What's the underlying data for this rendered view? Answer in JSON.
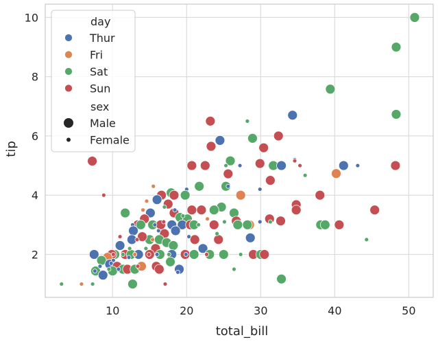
{
  "chart_data": {
    "type": "scatter",
    "xlabel": "total_bill",
    "ylabel": "tip",
    "xlim": [
      0.9,
      53.3
    ],
    "ylim": [
      0.55,
      10.45
    ],
    "xticks": [
      10,
      20,
      30,
      40,
      50
    ],
    "yticks": [
      2,
      4,
      6,
      8,
      10
    ],
    "grid": true,
    "legend": {
      "placement": "top-left",
      "hue_title": "day",
      "size_title": "sex",
      "hue_entries": [
        {
          "label": "Thur",
          "color": "#4c72b0"
        },
        {
          "label": "Fri",
          "color": "#dd8452"
        },
        {
          "label": "Sat",
          "color": "#55a868"
        },
        {
          "label": "Sun",
          "color": "#c44e52"
        }
      ],
      "size_entries": [
        {
          "label": "Male",
          "size": "large"
        },
        {
          "label": "Female",
          "size": "small"
        }
      ]
    },
    "sizes": {
      "Male": 7,
      "Female": 3
    },
    "points": [
      {
        "x": 50.8,
        "y": 10.0,
        "day": "Sat",
        "sex": "Male"
      },
      {
        "x": 48.3,
        "y": 9.0,
        "day": "Sat",
        "sex": "Male"
      },
      {
        "x": 39.4,
        "y": 7.58,
        "day": "Sat",
        "sex": "Male"
      },
      {
        "x": 48.3,
        "y": 6.73,
        "day": "Sat",
        "sex": "Male"
      },
      {
        "x": 34.3,
        "y": 6.7,
        "day": "Thur",
        "sex": "Male"
      },
      {
        "x": 28.2,
        "y": 6.5,
        "day": "Sat",
        "sex": "Female"
      },
      {
        "x": 23.2,
        "y": 6.5,
        "day": "Sun",
        "sex": "Male"
      },
      {
        "x": 32.4,
        "y": 6.0,
        "day": "Sun",
        "sex": "Male"
      },
      {
        "x": 28.9,
        "y": 5.92,
        "day": "Sat",
        "sex": "Male"
      },
      {
        "x": 24.5,
        "y": 5.85,
        "day": "Thur",
        "sex": "Male"
      },
      {
        "x": 23.3,
        "y": 5.65,
        "day": "Sun",
        "sex": "Male"
      },
      {
        "x": 30.4,
        "y": 5.6,
        "day": "Sun",
        "sex": "Male"
      },
      {
        "x": 34.6,
        "y": 5.2,
        "day": "Thur",
        "sex": "Female"
      },
      {
        "x": 7.25,
        "y": 5.15,
        "day": "Sun",
        "sex": "Male"
      },
      {
        "x": 25.9,
        "y": 5.16,
        "day": "Sat",
        "sex": "Male"
      },
      {
        "x": 34.6,
        "y": 5.16,
        "day": "Sun",
        "sex": "Female"
      },
      {
        "x": 29.9,
        "y": 5.07,
        "day": "Sun",
        "sex": "Male"
      },
      {
        "x": 20.7,
        "y": 5.0,
        "day": "Sun",
        "sex": "Male"
      },
      {
        "x": 22.5,
        "y": 5.0,
        "day": "Sun",
        "sex": "Male"
      },
      {
        "x": 31.7,
        "y": 5.0,
        "day": "Sat",
        "sex": "Male"
      },
      {
        "x": 32.8,
        "y": 5.0,
        "day": "Thur",
        "sex": "Male"
      },
      {
        "x": 41.2,
        "y": 5.0,
        "day": "Thur",
        "sex": "Male"
      },
      {
        "x": 48.2,
        "y": 5.0,
        "day": "Sun",
        "sex": "Male"
      },
      {
        "x": 25.3,
        "y": 5.0,
        "day": "Sat",
        "sex": "Female"
      },
      {
        "x": 27.2,
        "y": 5.0,
        "day": "Thur",
        "sex": "Female"
      },
      {
        "x": 43.1,
        "y": 5.0,
        "day": "Thur",
        "sex": "Female"
      },
      {
        "x": 35.3,
        "y": 5.0,
        "day": "Sun",
        "sex": "Female"
      },
      {
        "x": 40.2,
        "y": 4.73,
        "day": "Fri",
        "sex": "Male"
      },
      {
        "x": 25.6,
        "y": 4.72,
        "day": "Sun",
        "sex": "Male"
      },
      {
        "x": 36.0,
        "y": 4.67,
        "day": "Sat",
        "sex": "Female"
      },
      {
        "x": 31.3,
        "y": 4.5,
        "day": "Sun",
        "sex": "Male"
      },
      {
        "x": 21.7,
        "y": 4.3,
        "day": "Sat",
        "sex": "Male"
      },
      {
        "x": 25.3,
        "y": 4.3,
        "day": "Sat",
        "sex": "Male"
      },
      {
        "x": 15.5,
        "y": 4.3,
        "day": "Fri",
        "sex": "Female"
      },
      {
        "x": 29.9,
        "y": 4.2,
        "day": "Thur",
        "sex": "Female"
      },
      {
        "x": 20.0,
        "y": 4.2,
        "day": "Thur",
        "sex": "Female"
      },
      {
        "x": 17.9,
        "y": 4.08,
        "day": "Sat",
        "sex": "Male"
      },
      {
        "x": 16.6,
        "y": 4.0,
        "day": "Sun",
        "sex": "Male"
      },
      {
        "x": 18.3,
        "y": 4.0,
        "day": "Sun",
        "sex": "Male"
      },
      {
        "x": 27.3,
        "y": 4.0,
        "day": "Fri",
        "sex": "Male"
      },
      {
        "x": 38.0,
        "y": 4.0,
        "day": "Sun",
        "sex": "Male"
      },
      {
        "x": 19.8,
        "y": 4.0,
        "day": "Sat",
        "sex": "Male"
      },
      {
        "x": 8.8,
        "y": 4.0,
        "day": "Sun",
        "sex": "Female"
      },
      {
        "x": 16.0,
        "y": 3.85,
        "day": "Thur",
        "sex": "Male"
      },
      {
        "x": 17.5,
        "y": 3.7,
        "day": "Sun",
        "sex": "Male"
      },
      {
        "x": 24.7,
        "y": 3.6,
        "day": "Sat",
        "sex": "Male"
      },
      {
        "x": 34.8,
        "y": 3.68,
        "day": "Sun",
        "sex": "Male"
      },
      {
        "x": 45.4,
        "y": 3.5,
        "day": "Sun",
        "sex": "Male"
      },
      {
        "x": 20.7,
        "y": 3.5,
        "day": "Sun",
        "sex": "Male"
      },
      {
        "x": 22.0,
        "y": 3.5,
        "day": "Sun",
        "sex": "Male"
      },
      {
        "x": 23.7,
        "y": 3.5,
        "day": "Sat",
        "sex": "Male"
      },
      {
        "x": 34.8,
        "y": 3.5,
        "day": "Sun",
        "sex": "Male"
      },
      {
        "x": 26.4,
        "y": 3.4,
        "day": "Sat",
        "sex": "Male"
      },
      {
        "x": 11.7,
        "y": 3.4,
        "day": "Sat",
        "sex": "Male"
      },
      {
        "x": 15.1,
        "y": 3.4,
        "day": "Thur",
        "sex": "Male"
      },
      {
        "x": 18.3,
        "y": 3.4,
        "day": "Sun",
        "sex": "Male"
      },
      {
        "x": 14.3,
        "y": 3.2,
        "day": "Sun",
        "sex": "Male"
      },
      {
        "x": 19.1,
        "y": 3.25,
        "day": "Sat",
        "sex": "Male"
      },
      {
        "x": 20.1,
        "y": 3.2,
        "day": "Sat",
        "sex": "Male"
      },
      {
        "x": 31.2,
        "y": 3.2,
        "day": "Sun",
        "sex": "Male"
      },
      {
        "x": 32.7,
        "y": 3.13,
        "day": "Sun",
        "sex": "Male"
      },
      {
        "x": 26.7,
        "y": 3.13,
        "day": "Sun",
        "sex": "Male"
      },
      {
        "x": 13.4,
        "y": 3.0,
        "day": "Sun",
        "sex": "Male"
      },
      {
        "x": 13.8,
        "y": 3.0,
        "day": "Sat",
        "sex": "Male"
      },
      {
        "x": 15.4,
        "y": 3.0,
        "day": "Sat",
        "sex": "Male"
      },
      {
        "x": 16.5,
        "y": 3.0,
        "day": "Sun",
        "sex": "Male"
      },
      {
        "x": 18.0,
        "y": 3.0,
        "day": "Thur",
        "sex": "Male"
      },
      {
        "x": 19.4,
        "y": 3.0,
        "day": "Thur",
        "sex": "Male"
      },
      {
        "x": 20.5,
        "y": 3.0,
        "day": "Sun",
        "sex": "Male"
      },
      {
        "x": 21.0,
        "y": 3.0,
        "day": "Sat",
        "sex": "Male"
      },
      {
        "x": 23.7,
        "y": 3.0,
        "day": "Sun",
        "sex": "Male"
      },
      {
        "x": 26.9,
        "y": 3.0,
        "day": "Sat",
        "sex": "Male"
      },
      {
        "x": 28.5,
        "y": 3.0,
        "day": "Fri",
        "sex": "Male"
      },
      {
        "x": 28.2,
        "y": 3.0,
        "day": "Sat",
        "sex": "Male"
      },
      {
        "x": 38.1,
        "y": 3.0,
        "day": "Sat",
        "sex": "Male"
      },
      {
        "x": 38.7,
        "y": 3.0,
        "day": "Sat",
        "sex": "Male"
      },
      {
        "x": 40.6,
        "y": 3.0,
        "day": "Sun",
        "sex": "Male"
      },
      {
        "x": 12.7,
        "y": 3.0,
        "day": "Thur",
        "sex": "Female"
      },
      {
        "x": 12.8,
        "y": 2.8,
        "day": "Thur",
        "sex": "Male"
      },
      {
        "x": 15.0,
        "y": 2.5,
        "day": "Sat",
        "sex": "Male"
      },
      {
        "x": 18.5,
        "y": 2.8,
        "day": "Thur",
        "sex": "Male"
      },
      {
        "x": 17.0,
        "y": 2.7,
        "day": "Sun",
        "sex": "Male"
      },
      {
        "x": 12.6,
        "y": 2.5,
        "day": "Thur",
        "sex": "Male"
      },
      {
        "x": 14.0,
        "y": 2.6,
        "day": "Sun",
        "sex": "Male"
      },
      {
        "x": 16.3,
        "y": 2.5,
        "day": "Sat",
        "sex": "Male"
      },
      {
        "x": 21.1,
        "y": 2.5,
        "day": "Sun",
        "sex": "Male"
      },
      {
        "x": 24.3,
        "y": 2.5,
        "day": "Sun",
        "sex": "Male"
      },
      {
        "x": 28.6,
        "y": 2.56,
        "day": "Thur",
        "sex": "Male"
      },
      {
        "x": 17.3,
        "y": 2.4,
        "day": "Sat",
        "sex": "Male"
      },
      {
        "x": 18.2,
        "y": 2.3,
        "day": "Sat",
        "sex": "Male"
      },
      {
        "x": 15.8,
        "y": 2.2,
        "day": "Sun",
        "sex": "Male"
      },
      {
        "x": 22.2,
        "y": 2.2,
        "day": "Thur",
        "sex": "Male"
      },
      {
        "x": 11.0,
        "y": 2.3,
        "day": "Thur",
        "sex": "Male"
      },
      {
        "x": 11.7,
        "y": 2.0,
        "day": "Sun",
        "sex": "Male"
      },
      {
        "x": 10.3,
        "y": 2.0,
        "day": "Sat",
        "sex": "Male"
      },
      {
        "x": 9.9,
        "y": 2.0,
        "day": "Sun",
        "sex": "Male"
      },
      {
        "x": 9.3,
        "y": 1.9,
        "day": "Fri",
        "sex": "Male"
      },
      {
        "x": 12.5,
        "y": 2.0,
        "day": "Sat",
        "sex": "Male"
      },
      {
        "x": 13.5,
        "y": 2.0,
        "day": "Thur",
        "sex": "Male"
      },
      {
        "x": 15.0,
        "y": 2.0,
        "day": "Sun",
        "sex": "Male"
      },
      {
        "x": 16.4,
        "y": 2.0,
        "day": "Sat",
        "sex": "Male"
      },
      {
        "x": 18.0,
        "y": 2.0,
        "day": "Thur",
        "sex": "Male"
      },
      {
        "x": 19.8,
        "y": 2.0,
        "day": "Sun",
        "sex": "Male"
      },
      {
        "x": 21.0,
        "y": 2.0,
        "day": "Sat",
        "sex": "Male"
      },
      {
        "x": 23.1,
        "y": 2.0,
        "day": "Sat",
        "sex": "Male"
      },
      {
        "x": 25.0,
        "y": 2.0,
        "day": "Sat",
        "sex": "Male"
      },
      {
        "x": 29.0,
        "y": 2.0,
        "day": "Sun",
        "sex": "Male"
      },
      {
        "x": 30.0,
        "y": 2.0,
        "day": "Sat",
        "sex": "Male"
      },
      {
        "x": 30.5,
        "y": 2.0,
        "day": "Sun",
        "sex": "Male"
      },
      {
        "x": 7.5,
        "y": 2.0,
        "day": "Thur",
        "sex": "Male"
      },
      {
        "x": 8.5,
        "y": 1.8,
        "day": "Sat",
        "sex": "Male"
      },
      {
        "x": 9.6,
        "y": 1.67,
        "day": "Thur",
        "sex": "Male"
      },
      {
        "x": 10.6,
        "y": 1.6,
        "day": "Sun",
        "sex": "Male"
      },
      {
        "x": 11.4,
        "y": 1.5,
        "day": "Sat",
        "sex": "Male"
      },
      {
        "x": 12.0,
        "y": 1.5,
        "day": "Sun",
        "sex": "Male"
      },
      {
        "x": 13.0,
        "y": 1.5,
        "day": "Sat",
        "sex": "Male"
      },
      {
        "x": 13.9,
        "y": 1.6,
        "day": "Fri",
        "sex": "Male"
      },
      {
        "x": 15.9,
        "y": 1.6,
        "day": "Sun",
        "sex": "Male"
      },
      {
        "x": 16.3,
        "y": 1.5,
        "day": "Sun",
        "sex": "Male"
      },
      {
        "x": 17.8,
        "y": 1.75,
        "day": "Sat",
        "sex": "Male"
      },
      {
        "x": 19.0,
        "y": 1.5,
        "day": "Thur",
        "sex": "Male"
      },
      {
        "x": 7.7,
        "y": 1.44,
        "day": "Sat",
        "sex": "Male"
      },
      {
        "x": 8.7,
        "y": 1.3,
        "day": "Thur",
        "sex": "Male"
      },
      {
        "x": 10.0,
        "y": 1.44,
        "day": "Sat",
        "sex": "Male"
      },
      {
        "x": 12.7,
        "y": 1.0,
        "day": "Sat",
        "sex": "Male"
      },
      {
        "x": 32.8,
        "y": 1.17,
        "day": "Sat",
        "sex": "Male"
      },
      {
        "x": 7.6,
        "y": 1.44,
        "day": "Thur",
        "sex": "Female"
      },
      {
        "x": 8.3,
        "y": 1.6,
        "day": "Thur",
        "sex": "Female"
      },
      {
        "x": 9.5,
        "y": 1.5,
        "day": "Sat",
        "sex": "Female"
      },
      {
        "x": 10.1,
        "y": 1.8,
        "day": "Thur",
        "sex": "Female"
      },
      {
        "x": 11.4,
        "y": 2.0,
        "day": "Sat",
        "sex": "Female"
      },
      {
        "x": 12.2,
        "y": 1.9,
        "day": "Thur",
        "sex": "Female"
      },
      {
        "x": 13.4,
        "y": 1.6,
        "day": "Sun",
        "sex": "Female"
      },
      {
        "x": 14.5,
        "y": 2.2,
        "day": "Sat",
        "sex": "Female"
      },
      {
        "x": 15.4,
        "y": 2.5,
        "day": "Fri",
        "sex": "Female"
      },
      {
        "x": 16.0,
        "y": 2.0,
        "day": "Thur",
        "sex": "Female"
      },
      {
        "x": 16.9,
        "y": 3.1,
        "day": "Sun",
        "sex": "Female"
      },
      {
        "x": 17.6,
        "y": 2.0,
        "day": "Sat",
        "sex": "Female"
      },
      {
        "x": 18.8,
        "y": 1.4,
        "day": "Thur",
        "sex": "Female"
      },
      {
        "x": 19.5,
        "y": 3.3,
        "day": "Sat",
        "sex": "Female"
      },
      {
        "x": 20.3,
        "y": 2.6,
        "day": "Thur",
        "sex": "Female"
      },
      {
        "x": 22.7,
        "y": 2.0,
        "day": "Sun",
        "sex": "Female"
      },
      {
        "x": 25.1,
        "y": 3.1,
        "day": "Sat",
        "sex": "Female"
      },
      {
        "x": 26.4,
        "y": 1.5,
        "day": "Sat",
        "sex": "Female"
      },
      {
        "x": 27.3,
        "y": 2.0,
        "day": "Sat",
        "sex": "Female"
      },
      {
        "x": 29.9,
        "y": 3.1,
        "day": "Thur",
        "sex": "Female"
      },
      {
        "x": 31.3,
        "y": 3.1,
        "day": "Sat",
        "sex": "Female"
      },
      {
        "x": 44.3,
        "y": 2.5,
        "day": "Sat",
        "sex": "Female"
      },
      {
        "x": 3.1,
        "y": 1.0,
        "day": "Sat",
        "sex": "Female"
      },
      {
        "x": 5.8,
        "y": 1.0,
        "day": "Fri",
        "sex": "Female"
      },
      {
        "x": 7.3,
        "y": 1.0,
        "day": "Sat",
        "sex": "Female"
      },
      {
        "x": 17.1,
        "y": 1.0,
        "day": "Sun",
        "sex": "Female"
      },
      {
        "x": 10.1,
        "y": 2.0,
        "day": "Sun",
        "sex": "Female"
      },
      {
        "x": 14.9,
        "y": 2.0,
        "day": "Sun",
        "sex": "Female"
      },
      {
        "x": 13.0,
        "y": 2.0,
        "day": "Fri",
        "sex": "Female"
      },
      {
        "x": 11.0,
        "y": 2.6,
        "day": "Sun",
        "sex": "Female"
      },
      {
        "x": 14.1,
        "y": 3.5,
        "day": "Fri",
        "sex": "Female"
      },
      {
        "x": 16.2,
        "y": 2.8,
        "day": "Thur",
        "sex": "Female"
      },
      {
        "x": 9.8,
        "y": 1.7,
        "day": "Thur",
        "sex": "Female"
      },
      {
        "x": 10.8,
        "y": 1.5,
        "day": "Thur",
        "sex": "Female"
      },
      {
        "x": 18.4,
        "y": 3.5,
        "day": "Thur",
        "sex": "Female"
      },
      {
        "x": 19.9,
        "y": 2.0,
        "day": "Thur",
        "sex": "Female"
      },
      {
        "x": 21.6,
        "y": 3.0,
        "day": "Sat",
        "sex": "Female"
      },
      {
        "x": 22.8,
        "y": 3.2,
        "day": "Fri",
        "sex": "Female"
      },
      {
        "x": 24.1,
        "y": 2.7,
        "day": "Sat",
        "sex": "Female"
      },
      {
        "x": 25.6,
        "y": 4.3,
        "day": "Thur",
        "sex": "Female"
      },
      {
        "x": 17.0,
        "y": 3.6,
        "day": "Sat",
        "sex": "Female"
      },
      {
        "x": 13.3,
        "y": 2.5,
        "day": "Sun",
        "sex": "Female"
      },
      {
        "x": 15.7,
        "y": 3.0,
        "day": "Thur",
        "sex": "Female"
      },
      {
        "x": 14.6,
        "y": 3.8,
        "day": "Fri",
        "sex": "Female"
      },
      {
        "x": 12.3,
        "y": 2.2,
        "day": "Sat",
        "sex": "Female"
      }
    ]
  }
}
